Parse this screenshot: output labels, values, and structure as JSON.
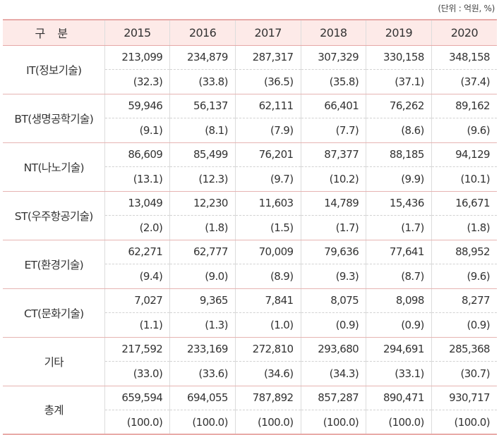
{
  "unit_note": "(단위 : 억원, %)",
  "header": {
    "category": "구 분",
    "years": [
      "2015",
      "2016",
      "2017",
      "2018",
      "2019",
      "2020"
    ]
  },
  "rows": [
    {
      "category": "IT(정보기술)",
      "values": [
        "213,099",
        "234,879",
        "287,317",
        "307,329",
        "330,158",
        "348,158"
      ],
      "shares": [
        "(32.3)",
        "(33.8)",
        "(36.5)",
        "(35.8)",
        "(37.1)",
        "(37.4)"
      ]
    },
    {
      "category": "BT(생명공학기술)",
      "values": [
        "59,946",
        "56,137",
        "62,111",
        "66,401",
        "76,262",
        "89,162"
      ],
      "shares": [
        "(9.1)",
        "(8.1)",
        "(7.9)",
        "(7.7)",
        "(8.6)",
        "(9.6)"
      ]
    },
    {
      "category": "NT(나노기술)",
      "values": [
        "86,609",
        "85,499",
        "76,201",
        "87,377",
        "88,185",
        "94,129"
      ],
      "shares": [
        "(13.1)",
        "(12.3)",
        "(9.7)",
        "(10.2)",
        "(9.9)",
        "(10.1)"
      ]
    },
    {
      "category": "ST(우주항공기술)",
      "values": [
        "13,049",
        "12,230",
        "11,603",
        "14,789",
        "15,436",
        "16,671"
      ],
      "shares": [
        "(2.0)",
        "(1.8)",
        "(1.5)",
        "(1.7)",
        "(1.7)",
        "(1.8)"
      ]
    },
    {
      "category": "ET(환경기술)",
      "values": [
        "62,271",
        "62,777",
        "70,009",
        "79,636",
        "77,641",
        "88,952"
      ],
      "shares": [
        "(9.4)",
        "(9.0)",
        "(8.9)",
        "(9.3)",
        "(8.7)",
        "(9.6)"
      ]
    },
    {
      "category": "CT(문화기술)",
      "values": [
        "7,027",
        "9,365",
        "7,841",
        "8,075",
        "8,098",
        "8,277"
      ],
      "shares": [
        "(1.1)",
        "(1.3)",
        "(1.0)",
        "(0.9)",
        "(0.9)",
        "(0.9)"
      ]
    },
    {
      "category": "기타",
      "values": [
        "217,592",
        "233,169",
        "272,810",
        "293,680",
        "294,691",
        "285,368"
      ],
      "shares": [
        "(33.0)",
        "(33.6)",
        "(34.6)",
        "(34.3)",
        "(33.1)",
        "(30.7)"
      ]
    },
    {
      "category": "총계",
      "values": [
        "659,594",
        "694,055",
        "787,892",
        "857,287",
        "890,471",
        "930,717"
      ],
      "shares": [
        "(100.0)",
        "(100.0)",
        "(100.0)",
        "(100.0)",
        "(100.0)",
        "(100.0)"
      ]
    }
  ],
  "colors": {
    "header_background": "#fdeae8",
    "rule_pink": "#e8aaa8",
    "text": "#333333"
  }
}
